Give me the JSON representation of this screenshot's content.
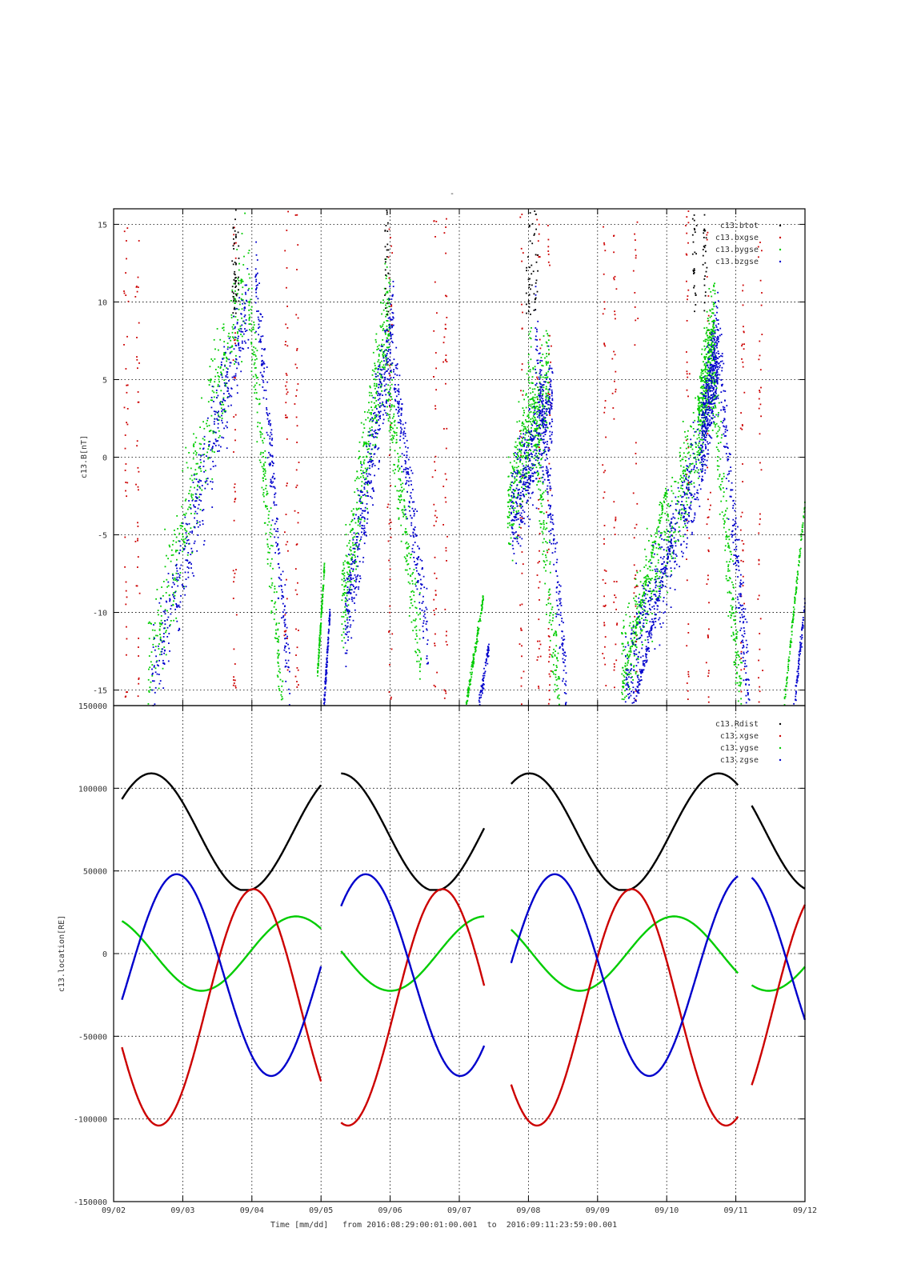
{
  "page": {
    "title_mark": "-",
    "footer_xlabel": "Time [mm/dd]",
    "footer_range": "from 2016:08:29:00:01:00.001  to  2016:09:11:23:59:00.001"
  },
  "chart_data": [
    {
      "type": "scatter",
      "title": "",
      "ylabel": "c13.B[nT]",
      "xlabel": "",
      "x_ticks": [
        "09/02",
        "09/03",
        "09/04",
        "09/05",
        "09/06",
        "09/07",
        "09/08",
        "09/09",
        "09/10",
        "09/11",
        "09/12"
      ],
      "y_ticks": [
        "15",
        "10",
        "5",
        "0",
        "-5",
        "-10",
        "-15"
      ],
      "ylim": [
        -16,
        16
      ],
      "xlim_days": [
        0,
        10
      ],
      "grid": true,
      "legend_position": "top-right",
      "series": [
        {
          "name": "c13.btot",
          "color": "#000000"
        },
        {
          "name": "c13.bxgse",
          "color": "#cc0000"
        },
        {
          "name": "c13.bygse",
          "color": "#00cc00"
        },
        {
          "name": "c13.bzgse",
          "color": "#0000cc"
        }
      ]
    },
    {
      "type": "line",
      "title": "",
      "ylabel": "c13.location[RE]",
      "xlabel": "Time [mm/dd]",
      "x_ticks": [
        "09/02",
        "09/03",
        "09/04",
        "09/05",
        "09/06",
        "09/07",
        "09/08",
        "09/09",
        "09/10",
        "09/11",
        "09/12"
      ],
      "y_ticks": [
        "150000",
        "100000",
        "50000",
        "0",
        "-50000",
        "-100000",
        "-150000"
      ],
      "ylim": [
        -150000,
        150000
      ],
      "xlim_days": [
        0,
        10
      ],
      "grid": true,
      "legend_position": "top-right",
      "series": [
        {
          "name": "c13.Rdist",
          "color": "#000000"
        },
        {
          "name": "c13.xgse",
          "color": "#cc0000"
        },
        {
          "name": "c13.ygse",
          "color": "#00cc00"
        },
        {
          "name": "c13.zgse",
          "color": "#0000cc"
        }
      ],
      "data_gaps_days": [
        [
          3.0,
          3.28
        ],
        [
          5.36,
          5.74
        ],
        [
          9.03,
          9.22
        ]
      ],
      "Rdist": {
        "max": 109000,
        "min": 38000
      },
      "xgse": {
        "max": 39000,
        "min": -104000
      },
      "ygse": {
        "max": 27000,
        "min": -26000
      },
      "zgse": {
        "max": 48000,
        "min": -74000
      }
    }
  ]
}
